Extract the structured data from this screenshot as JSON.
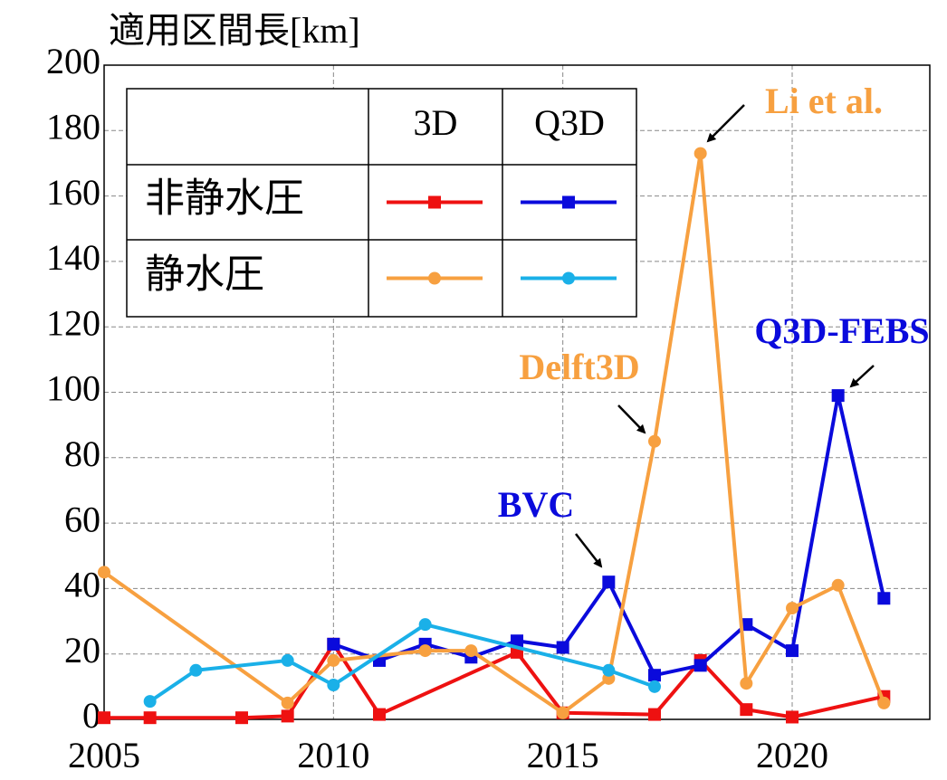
{
  "chart_data": {
    "type": "line",
    "title": "適用区間長[km]",
    "xlim": [
      2005,
      2023
    ],
    "xticks": [
      2005,
      2010,
      2015,
      2020
    ],
    "ylim": [
      0,
      200
    ],
    "yticks": [
      0,
      20,
      40,
      60,
      80,
      100,
      120,
      140,
      160,
      180,
      200
    ],
    "grid": true,
    "legend": {
      "columns": [
        "3D",
        "Q3D"
      ],
      "rows": [
        "非静水圧",
        "静水圧"
      ]
    },
    "series": [
      {
        "color": "#ee1111",
        "marker": "square",
        "x": [
          2005,
          2006,
          2008,
          2009,
          2010,
          2011,
          2014,
          2015,
          2017,
          2018,
          2019,
          2020,
          2022
        ],
        "values": [
          0.5,
          0.5,
          0.5,
          1,
          23,
          1.5,
          20.5,
          2,
          1.5,
          18,
          3,
          0.7,
          7
        ]
      },
      {
        "color": "#0a0adc",
        "marker": "square",
        "x": [
          2010,
          2011,
          2012,
          2013,
          2014,
          2015,
          2016,
          2017,
          2018,
          2019,
          2020,
          2021,
          2022
        ],
        "values": [
          23,
          18,
          23,
          19,
          24,
          22,
          42,
          13.5,
          16.5,
          29,
          21,
          99,
          37
        ]
      },
      {
        "color": "#f7a040",
        "marker": "circle",
        "x": [
          2005,
          2009,
          2010,
          2012,
          2013,
          2015,
          2016,
          2017,
          2018,
          2019,
          2020,
          2021,
          2022
        ],
        "values": [
          45,
          5,
          18,
          21,
          21,
          2,
          12.5,
          85,
          173,
          11,
          34,
          41,
          5
        ]
      },
      {
        "color": "#1ab0e8",
        "marker": "circle",
        "x": [
          2006,
          2007,
          2009,
          2010,
          2012,
          2016,
          2017
        ],
        "values": [
          5.5,
          15,
          18,
          10.5,
          29,
          15,
          10
        ]
      }
    ],
    "annotations": [
      {
        "text": "Li et al.",
        "color": "#f7a040"
      },
      {
        "text": "Delft3D",
        "color": "#f7a040"
      },
      {
        "text": "BVC",
        "color": "#0a0adc"
      },
      {
        "text": "Q3D-FEBS",
        "color": "#0a0adc"
      }
    ]
  }
}
